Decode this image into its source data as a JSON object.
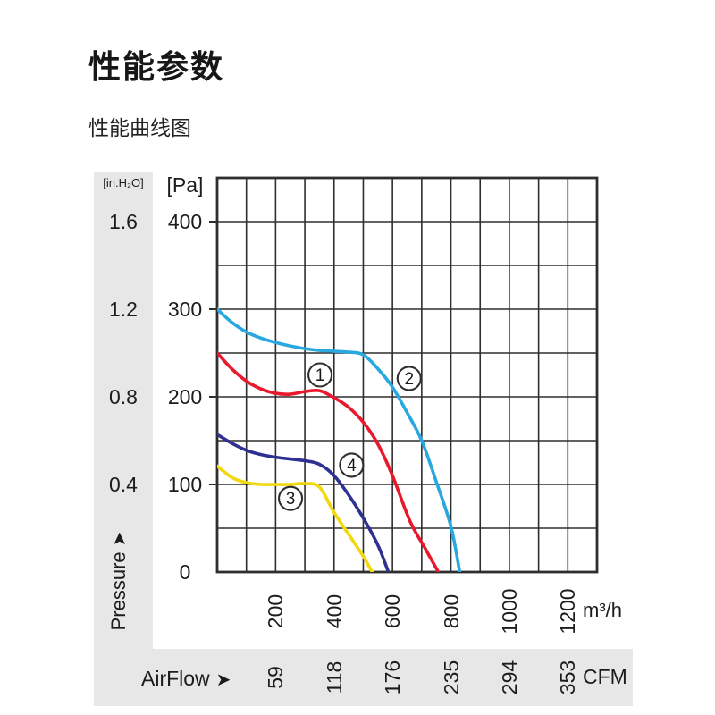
{
  "page": {
    "title": "性能参数",
    "subtitle": "性能曲线图"
  },
  "axes": {
    "inh2o_unit": "[in.H₂O]",
    "pa_unit": "[Pa]",
    "m3h_unit": "m³/h",
    "cfm_unit": "CFM",
    "pressure_name": "Pressure",
    "airflow_name": "AirFlow",
    "arrow_glyph": "➤"
  },
  "colors": {
    "band_gray": "#e7e7e7",
    "grid": "#2e2e2e"
  },
  "chart_data": {
    "type": "line",
    "title": "性能曲线图",
    "xlabel": "AirFlow",
    "ylabel": "Pressure",
    "x_units": [
      "m³/h",
      "CFM"
    ],
    "y_units": [
      "Pa",
      "in.H₂O"
    ],
    "x_range_m3h": [
      0,
      1300
    ],
    "y_range_pa": [
      0,
      450
    ],
    "x_grid_step_m3h": 100,
    "y_grid_step_pa": 50,
    "x_ticks_m3h": [
      200,
      400,
      600,
      800,
      1000,
      1200
    ],
    "x_ticks_cfm": [
      59,
      118,
      176,
      235,
      294,
      353
    ],
    "y_ticks_pa": [
      400,
      300,
      200,
      100,
      0
    ],
    "y_ticks_inh2o": [
      "1.6",
      "1.2",
      "0.8",
      "0.4"
    ],
    "grid": true,
    "legend": "numbered circles on curves",
    "series": [
      {
        "id": "1",
        "label": "1",
        "color": "#e8192c",
        "label_pos": {
          "x": 352,
          "y": 225
        },
        "points": [
          [
            0,
            250
          ],
          [
            50,
            232
          ],
          [
            100,
            218
          ],
          [
            150,
            209
          ],
          [
            200,
            204
          ],
          [
            250,
            203
          ],
          [
            300,
            206
          ],
          [
            350,
            207
          ],
          [
            400,
            199
          ],
          [
            450,
            188
          ],
          [
            500,
            171
          ],
          [
            550,
            146
          ],
          [
            600,
            110
          ],
          [
            660,
            58
          ],
          [
            710,
            28
          ],
          [
            757,
            0
          ]
        ]
      },
      {
        "id": "2",
        "label": "2",
        "color": "#29a8e0",
        "label_pos": {
          "x": 657,
          "y": 221
        },
        "points": [
          [
            0,
            300
          ],
          [
            50,
            285
          ],
          [
            100,
            274
          ],
          [
            150,
            267
          ],
          [
            200,
            262
          ],
          [
            250,
            258
          ],
          [
            300,
            255
          ],
          [
            350,
            253
          ],
          [
            400,
            252
          ],
          [
            450,
            251
          ],
          [
            500,
            248
          ],
          [
            550,
            232
          ],
          [
            600,
            211
          ],
          [
            650,
            182
          ],
          [
            700,
            150
          ],
          [
            750,
            103
          ],
          [
            800,
            52
          ],
          [
            830,
            0
          ]
        ]
      },
      {
        "id": "3",
        "label": "3",
        "color": "#f2d80e",
        "label_pos": {
          "x": 251,
          "y": 84
        },
        "points": [
          [
            0,
            121
          ],
          [
            50,
            108
          ],
          [
            100,
            102
          ],
          [
            150,
            100
          ],
          [
            200,
            100
          ],
          [
            250,
            100
          ],
          [
            300,
            101
          ],
          [
            350,
            97
          ],
          [
            400,
            68
          ],
          [
            460,
            38
          ],
          [
            500,
            18
          ],
          [
            530,
            0
          ]
        ]
      },
      {
        "id": "4",
        "label": "4",
        "color": "#2e3192",
        "label_pos": {
          "x": 460,
          "y": 122
        },
        "points": [
          [
            0,
            157
          ],
          [
            50,
            147
          ],
          [
            100,
            139
          ],
          [
            150,
            134
          ],
          [
            200,
            131
          ],
          [
            250,
            129
          ],
          [
            300,
            127
          ],
          [
            350,
            123
          ],
          [
            400,
            110
          ],
          [
            460,
            83
          ],
          [
            520,
            50
          ],
          [
            555,
            27
          ],
          [
            586,
            0
          ]
        ]
      }
    ]
  }
}
